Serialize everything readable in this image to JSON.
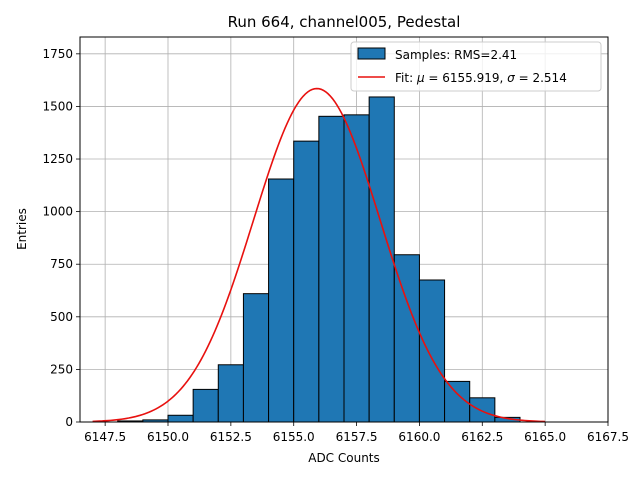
{
  "chart_data": {
    "type": "bar",
    "title": "Run 664, channel005, Pedestal",
    "xlabel": "ADC Counts",
    "ylabel": "Entries",
    "xlim": [
      6146.5,
      6167.5
    ],
    "ylim": [
      0,
      1830
    ],
    "grid": true,
    "legend_position": "top-right",
    "x_ticks": [
      "6147.5",
      "6150.0",
      "6152.5",
      "6155.0",
      "6157.5",
      "6160.0",
      "6162.5",
      "6165.0",
      "6167.5"
    ],
    "x_tick_values": [
      6147.5,
      6150.0,
      6152.5,
      6155.0,
      6157.5,
      6160.0,
      6162.5,
      6165.0,
      6167.5
    ],
    "y_ticks": [
      "0",
      "250",
      "500",
      "750",
      "1000",
      "1250",
      "1500",
      "1750"
    ],
    "y_tick_values": [
      0,
      250,
      500,
      750,
      1000,
      1250,
      1500,
      1750
    ],
    "histogram": {
      "name": "Samples: RMS=2.41",
      "color": "#1f77b4",
      "edge_color": "#000000",
      "bin_edges": [
        6148.0,
        6149.0,
        6150.0,
        6151.0,
        6152.0,
        6153.0,
        6154.0,
        6155.0,
        6156.0,
        6157.0,
        6158.0,
        6159.0,
        6160.0,
        6161.0,
        6162.0,
        6163.0,
        6164.0
      ],
      "counts": [
        5,
        10,
        32,
        155,
        272,
        610,
        1155,
        1335,
        1453,
        1460,
        1545,
        795,
        675,
        193,
        115,
        22
      ]
    },
    "fit": {
      "name": "Fit: μ = 6155.919, σ = 2.514",
      "mu_label": "μ",
      "sigma_label": "σ",
      "mu": 6155.919,
      "sigma": 2.514,
      "peak": 1585,
      "x_range": [
        6147.0,
        6165.0
      ],
      "color": "#e8110f"
    }
  }
}
